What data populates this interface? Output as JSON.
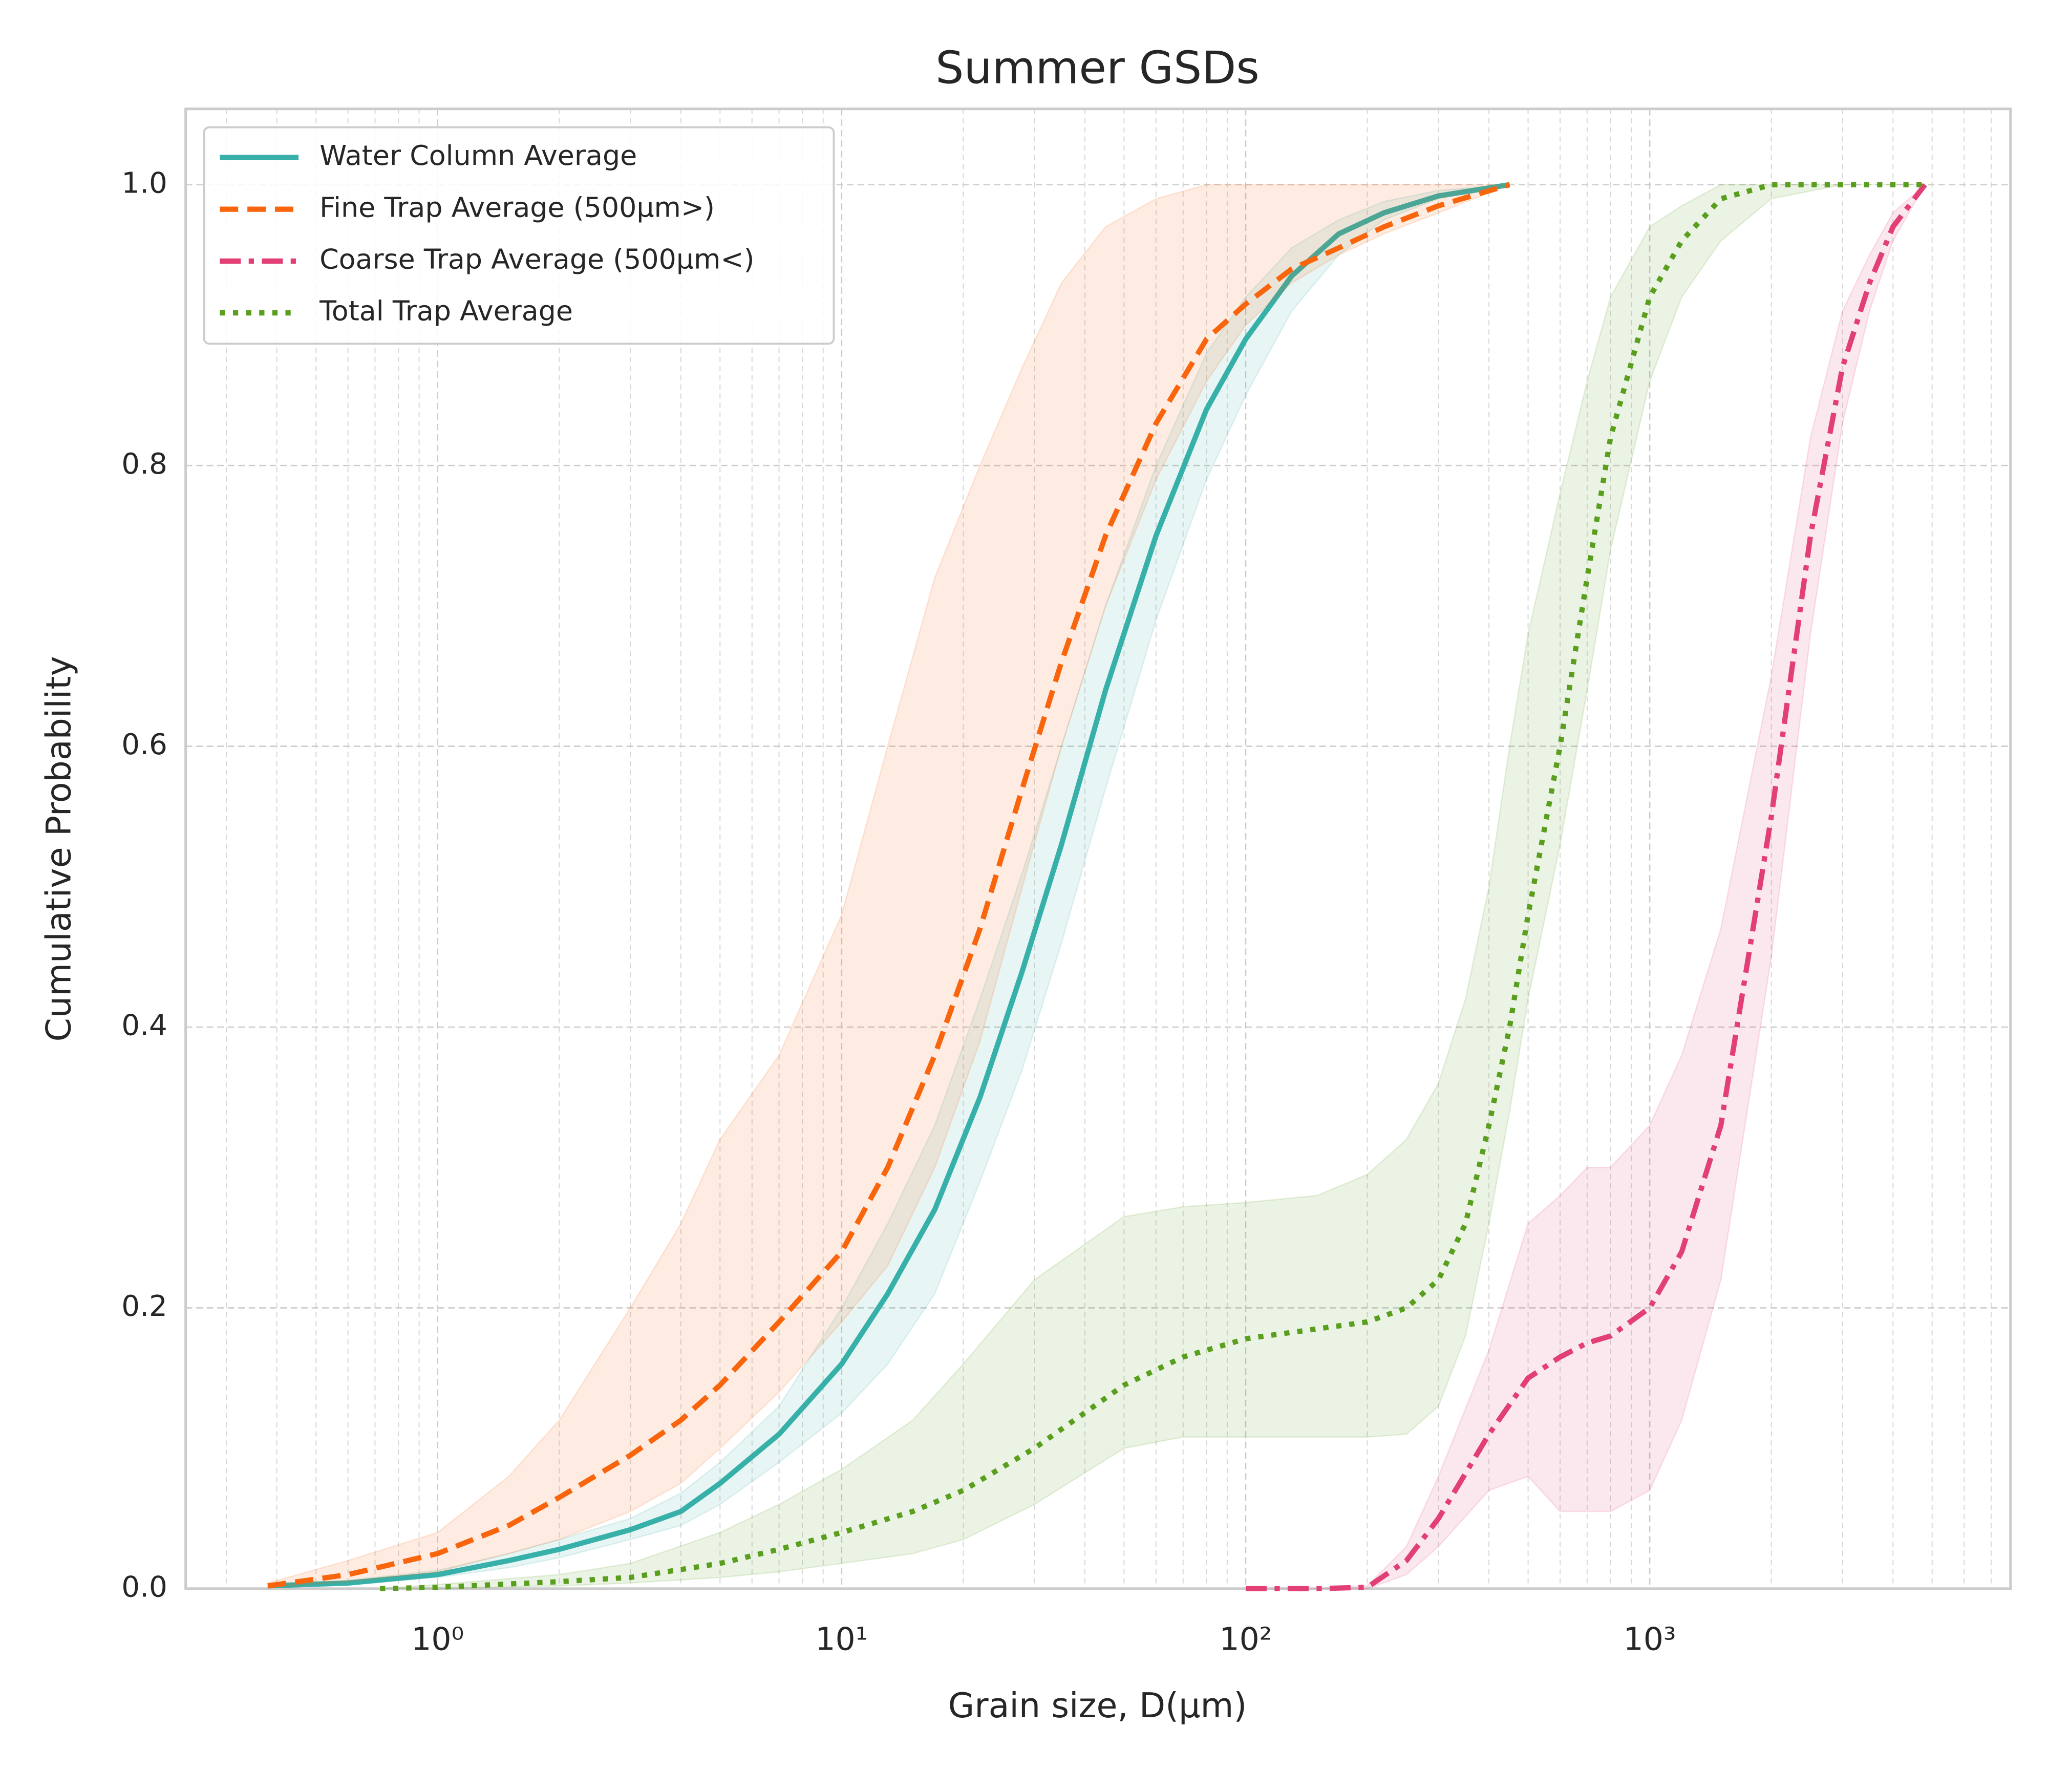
{
  "chart_data": {
    "type": "line",
    "title": "Summer GSDs",
    "xlabel": "Grain size, D(μm)",
    "ylabel": "Cumulative Probability",
    "xscale": "log",
    "xlim": [
      0.238,
      7816
    ],
    "ylim": [
      0,
      1.054
    ],
    "xticks": [
      {
        "value": 1,
        "label": "10⁰"
      },
      {
        "value": 10,
        "label": "10¹"
      },
      {
        "value": 100,
        "label": "10²"
      },
      {
        "value": 1000,
        "label": "10³"
      }
    ],
    "xminorticks": [
      0.3,
      0.4,
      0.5,
      0.6,
      0.7,
      0.8,
      0.9,
      2,
      3,
      4,
      5,
      6,
      7,
      8,
      9,
      20,
      30,
      40,
      50,
      60,
      70,
      80,
      90,
      200,
      300,
      400,
      500,
      600,
      700,
      800,
      900,
      2000,
      3000,
      4000,
      5000,
      6000,
      7000
    ],
    "yticks": [
      {
        "value": 0,
        "label": "0.0"
      },
      0.2,
      0.4,
      0.6,
      0.8,
      {
        "value": 1,
        "label": "1.0"
      }
    ],
    "grid": true,
    "legend": "upper left",
    "series": [
      {
        "name": "Water Column Average",
        "color": "#36b0a8",
        "dash": "solid",
        "x": [
          0.38,
          0.6,
          1,
          1.5,
          2,
          3,
          4,
          5,
          7,
          10,
          13,
          17,
          22,
          28,
          35,
          45,
          60,
          80,
          100,
          130,
          170,
          220,
          300,
          450
        ],
        "values": [
          0.002,
          0.004,
          0.01,
          0.02,
          0.028,
          0.042,
          0.055,
          0.075,
          0.11,
          0.16,
          0.21,
          0.27,
          0.35,
          0.44,
          0.53,
          0.64,
          0.75,
          0.84,
          0.89,
          0.935,
          0.965,
          0.98,
          0.992,
          1.0
        ],
        "band_lower": [
          0.001,
          0.003,
          0.008,
          0.015,
          0.022,
          0.035,
          0.045,
          0.06,
          0.09,
          0.125,
          0.16,
          0.21,
          0.29,
          0.37,
          0.46,
          0.57,
          0.69,
          0.79,
          0.85,
          0.91,
          0.95,
          0.975,
          0.99,
          1.0
        ],
        "band_upper": [
          0.003,
          0.006,
          0.013,
          0.025,
          0.035,
          0.05,
          0.068,
          0.09,
          0.13,
          0.2,
          0.26,
          0.33,
          0.42,
          0.51,
          0.6,
          0.7,
          0.8,
          0.88,
          0.92,
          0.955,
          0.975,
          0.988,
          0.996,
          1.0
        ]
      },
      {
        "name": "Fine Trap Average (500µm>)",
        "color": "#f9650d",
        "dash": "dashed",
        "x": [
          0.38,
          0.6,
          1,
          1.5,
          2,
          3,
          4,
          5,
          7,
          10,
          13,
          17,
          22,
          28,
          35,
          45,
          60,
          80,
          100,
          130,
          170,
          220,
          300,
          450
        ],
        "values": [
          0.002,
          0.01,
          0.025,
          0.045,
          0.065,
          0.095,
          0.12,
          0.145,
          0.19,
          0.24,
          0.3,
          0.38,
          0.47,
          0.57,
          0.66,
          0.75,
          0.83,
          0.89,
          0.915,
          0.94,
          0.955,
          0.97,
          0.985,
          1.0
        ],
        "band_lower": [
          0.001,
          0.005,
          0.012,
          0.025,
          0.035,
          0.055,
          0.075,
          0.1,
          0.14,
          0.19,
          0.23,
          0.3,
          0.39,
          0.5,
          0.6,
          0.7,
          0.79,
          0.86,
          0.9,
          0.93,
          0.95,
          0.965,
          0.98,
          1.0
        ],
        "band_upper": [
          0.004,
          0.02,
          0.04,
          0.08,
          0.12,
          0.2,
          0.26,
          0.32,
          0.38,
          0.48,
          0.6,
          0.72,
          0.8,
          0.87,
          0.93,
          0.97,
          0.99,
          1.0,
          1.0,
          1.0,
          1.0,
          1.0,
          1.0,
          1.0
        ]
      },
      {
        "name": "Coarse Trap Average (500µm<)",
        "color": "#e23f74",
        "dash": "dashdot",
        "x": [
          100,
          150,
          200,
          250,
          300,
          400,
          500,
          600,
          700,
          800,
          1000,
          1200,
          1500,
          2000,
          2500,
          3000,
          3500,
          4000,
          4800
        ],
        "values": [
          0,
          0,
          0.001,
          0.02,
          0.05,
          0.11,
          0.15,
          0.165,
          0.175,
          0.18,
          0.2,
          0.24,
          0.33,
          0.55,
          0.75,
          0.87,
          0.93,
          0.97,
          1.0
        ],
        "band_lower": [
          0,
          0,
          0,
          0.01,
          0.03,
          0.07,
          0.08,
          0.055,
          0.055,
          0.055,
          0.07,
          0.12,
          0.22,
          0.45,
          0.68,
          0.83,
          0.91,
          0.96,
          1.0
        ],
        "band_upper": [
          0,
          0,
          0.002,
          0.03,
          0.08,
          0.17,
          0.26,
          0.28,
          0.3,
          0.3,
          0.33,
          0.38,
          0.47,
          0.65,
          0.82,
          0.91,
          0.95,
          0.98,
          1.0
        ]
      },
      {
        "name": "Total Trap Average",
        "color": "#5a9e1e",
        "dash": "dotted",
        "x": [
          0.72,
          1,
          2,
          3,
          5,
          7,
          10,
          15,
          20,
          30,
          50,
          70,
          100,
          150,
          200,
          250,
          300,
          350,
          400,
          450,
          500,
          600,
          700,
          800,
          1000,
          1200,
          1500,
          2000,
          3000,
          4800
        ],
        "values": [
          0,
          0.001,
          0.005,
          0.008,
          0.018,
          0.028,
          0.04,
          0.055,
          0.07,
          0.1,
          0.145,
          0.165,
          0.178,
          0.185,
          0.19,
          0.2,
          0.22,
          0.26,
          0.33,
          0.4,
          0.48,
          0.6,
          0.72,
          0.82,
          0.92,
          0.96,
          0.99,
          1.0,
          1.0,
          1.0
        ],
        "band_lower": [
          0,
          0,
          0.002,
          0.004,
          0.008,
          0.012,
          0.018,
          0.025,
          0.035,
          0.06,
          0.1,
          0.108,
          0.108,
          0.108,
          0.108,
          0.11,
          0.13,
          0.18,
          0.26,
          0.34,
          0.42,
          0.53,
          0.64,
          0.74,
          0.86,
          0.92,
          0.96,
          0.99,
          1.0,
          1.0
        ],
        "band_upper": [
          0,
          0.003,
          0.01,
          0.018,
          0.04,
          0.06,
          0.085,
          0.12,
          0.16,
          0.22,
          0.265,
          0.272,
          0.275,
          0.28,
          0.295,
          0.32,
          0.36,
          0.42,
          0.5,
          0.6,
          0.68,
          0.78,
          0.86,
          0.92,
          0.97,
          0.985,
          1.0,
          1.0,
          1.0,
          1.0
        ]
      }
    ]
  }
}
